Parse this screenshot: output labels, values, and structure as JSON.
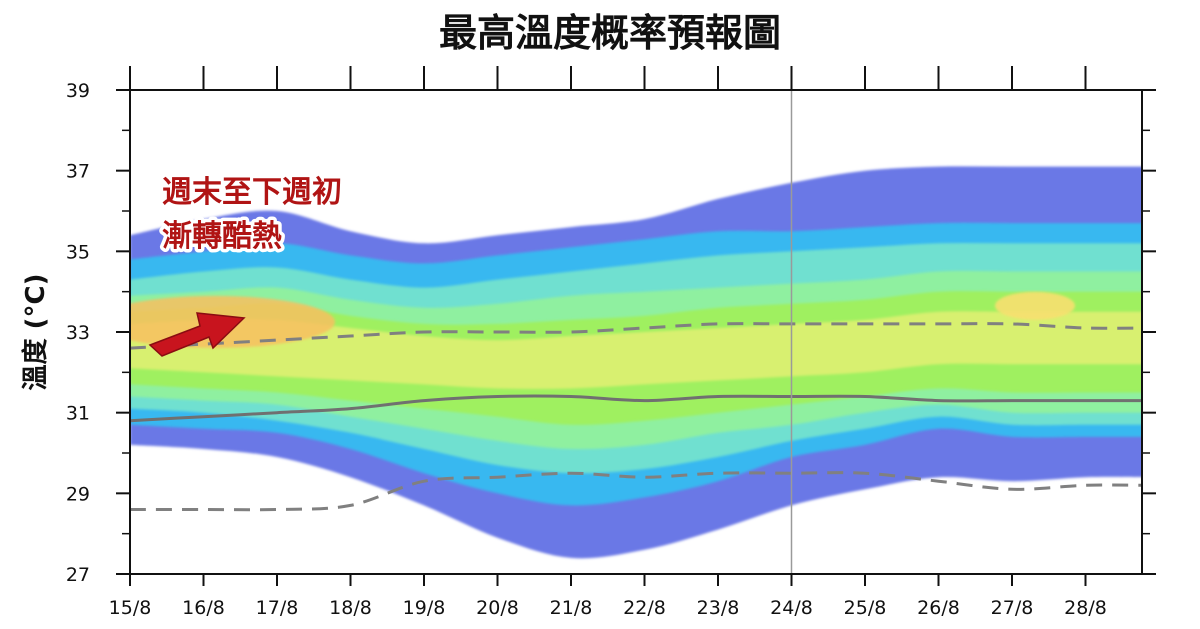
{
  "chart_data": {
    "type": "area",
    "title": "最高溫度概率預報圖",
    "ylabel": "溫度 (°C)",
    "xlabel": "",
    "ylim": [
      27,
      39
    ],
    "yticks": [
      27,
      29,
      31,
      33,
      35,
      37,
      39
    ],
    "categories": [
      "15/8",
      "16/8",
      "17/8",
      "18/8",
      "19/8",
      "20/8",
      "21/8",
      "22/8",
      "23/8",
      "24/8",
      "25/8",
      "26/8",
      "27/8",
      "28/8"
    ],
    "highlighted_categories": [
      "16/8",
      "23/8"
    ],
    "highlight_color": "#d01010",
    "forecast_start_category": "24/8",
    "annotation": {
      "lines": [
        "週末至下週初",
        "漸轉酷熱"
      ],
      "color": "#b01414",
      "arrow_color": "#c8141e"
    },
    "probability_bands": [
      {
        "color": "#6b78e6",
        "lower": [
          30.2,
          30.1,
          29.9,
          29.4,
          28.7,
          27.9,
          27.4,
          27.6,
          28.1,
          28.7,
          29.1,
          29.4,
          29.3,
          29.4
        ],
        "upper": [
          35.4,
          35.8,
          36.0,
          35.5,
          35.2,
          35.4,
          35.6,
          35.8,
          36.3,
          36.7,
          37.0,
          37.1,
          37.1,
          37.1
        ]
      },
      {
        "color": "#38b8f0",
        "lower": [
          30.7,
          30.6,
          30.5,
          30.1,
          29.5,
          29.0,
          28.7,
          28.9,
          29.3,
          29.9,
          30.2,
          30.6,
          30.4,
          30.4
        ],
        "upper": [
          34.8,
          35.0,
          35.2,
          34.9,
          34.7,
          34.9,
          35.1,
          35.3,
          35.5,
          35.5,
          35.6,
          35.7,
          35.7,
          35.7
        ]
      },
      {
        "color": "#6fe0d0",
        "lower": [
          31.1,
          31.0,
          30.8,
          30.5,
          30.1,
          29.7,
          29.5,
          29.6,
          29.9,
          30.3,
          30.6,
          30.9,
          30.7,
          30.7
        ],
        "upper": [
          34.3,
          34.5,
          34.6,
          34.3,
          34.1,
          34.3,
          34.5,
          34.7,
          34.9,
          35.0,
          35.1,
          35.2,
          35.2,
          35.2
        ]
      },
      {
        "color": "#8ff0a0",
        "lower": [
          31.4,
          31.3,
          31.2,
          30.9,
          30.6,
          30.3,
          30.1,
          30.2,
          30.5,
          30.7,
          31.0,
          31.2,
          31.0,
          31.0
        ],
        "upper": [
          33.9,
          34.0,
          34.1,
          33.8,
          33.6,
          33.7,
          33.9,
          34.0,
          34.1,
          34.2,
          34.3,
          34.5,
          34.5,
          34.5
        ]
      },
      {
        "color": "#9ff060",
        "lower": [
          31.7,
          31.6,
          31.5,
          31.3,
          31.1,
          30.9,
          30.7,
          30.8,
          31.0,
          31.2,
          31.4,
          31.6,
          31.5,
          31.5
        ],
        "upper": [
          33.5,
          33.6,
          33.7,
          33.4,
          33.2,
          33.2,
          33.3,
          33.4,
          33.6,
          33.7,
          33.8,
          34.0,
          34.0,
          34.0
        ]
      },
      {
        "color": "#d8f070",
        "lower": [
          32.1,
          32.0,
          31.9,
          31.8,
          31.7,
          31.6,
          31.6,
          31.7,
          31.8,
          31.9,
          32.0,
          32.2,
          32.2,
          32.2
        ],
        "upper": [
          33.2,
          33.3,
          33.3,
          33.1,
          32.9,
          32.8,
          32.9,
          33.0,
          33.1,
          33.2,
          33.3,
          33.5,
          33.5,
          33.5
        ]
      }
    ],
    "series": [
      {
        "style": "dashed",
        "color": "#808080",
        "values": [
          32.6,
          32.7,
          32.8,
          32.9,
          33.0,
          33.0,
          33.0,
          33.1,
          33.2,
          33.2,
          33.2,
          33.2,
          33.2,
          33.1
        ]
      },
      {
        "style": "solid",
        "color": "#707070",
        "values": [
          30.8,
          30.9,
          31.0,
          31.1,
          31.3,
          31.4,
          31.4,
          31.3,
          31.4,
          31.4,
          31.4,
          31.3,
          31.3,
          31.3
        ]
      },
      {
        "style": "dashed",
        "color": "#808080",
        "values": [
          28.6,
          28.6,
          28.6,
          28.7,
          29.3,
          29.4,
          29.5,
          29.4,
          29.5,
          29.5,
          29.5,
          29.3,
          29.1,
          29.2
        ]
      }
    ],
    "grid": false
  }
}
